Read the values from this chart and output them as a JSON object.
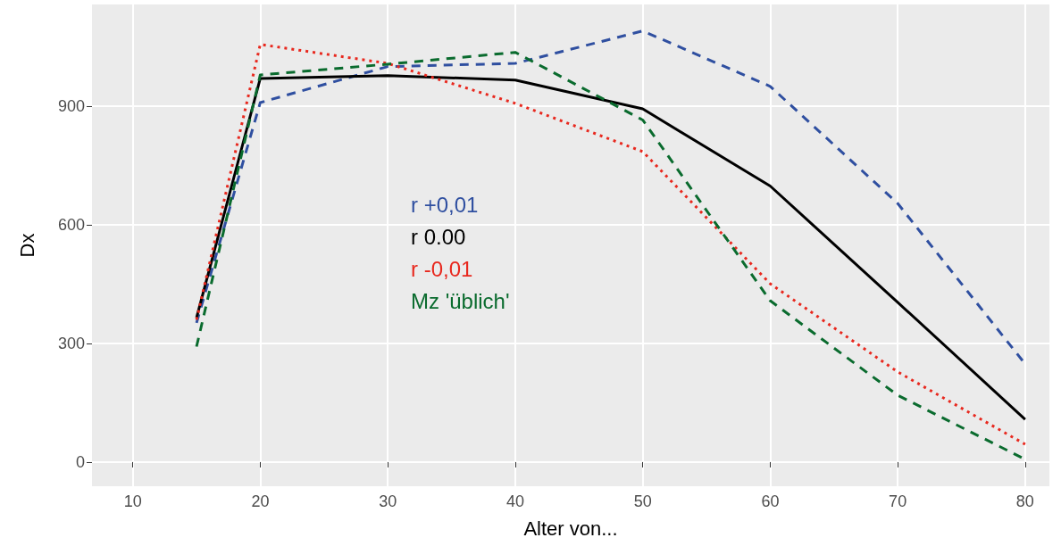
{
  "chart_data": {
    "type": "line",
    "xlabel": "Alter von...",
    "ylabel": "Dx",
    "xlim": [
      6.8,
      81.9
    ],
    "xticks": [
      10,
      20,
      30,
      40,
      50,
      60,
      70,
      80
    ],
    "ylim": [
      -61,
      1157
    ],
    "yticks": [
      0,
      300,
      600,
      900
    ],
    "grid": true,
    "legend": "left",
    "marker": "none",
    "series": [
      {
        "name": "r +0,01",
        "color": "#2f4fa0",
        "line_style": "dashed",
        "x": [
          15,
          20,
          30,
          40,
          50,
          60,
          70,
          80
        ],
        "values": [
          352,
          909,
          1000,
          1008,
          1090,
          950,
          654,
          248
        ]
      },
      {
        "name": "r 0.00",
        "color": "#000000",
        "line_style": "solid",
        "x": [
          15,
          20,
          30,
          40,
          50,
          60,
          70,
          80
        ],
        "values": [
          365,
          970,
          977,
          966,
          893,
          698,
          404,
          108
        ]
      },
      {
        "name": "r -0,01",
        "color": "#e8281e",
        "line_style": "dotted",
        "x": [
          15,
          20,
          30,
          40,
          50,
          60,
          70,
          80
        ],
        "values": [
          360,
          1056,
          1008,
          907,
          785,
          451,
          228,
          45
        ]
      },
      {
        "name": "Mz 'üblich'",
        "color": "#0a6b2e",
        "line_style": "dashed",
        "x": [
          15,
          20,
          30,
          40,
          50,
          60,
          70,
          80
        ],
        "values": [
          292,
          979,
          1006,
          1036,
          865,
          408,
          169,
          7
        ]
      }
    ]
  }
}
